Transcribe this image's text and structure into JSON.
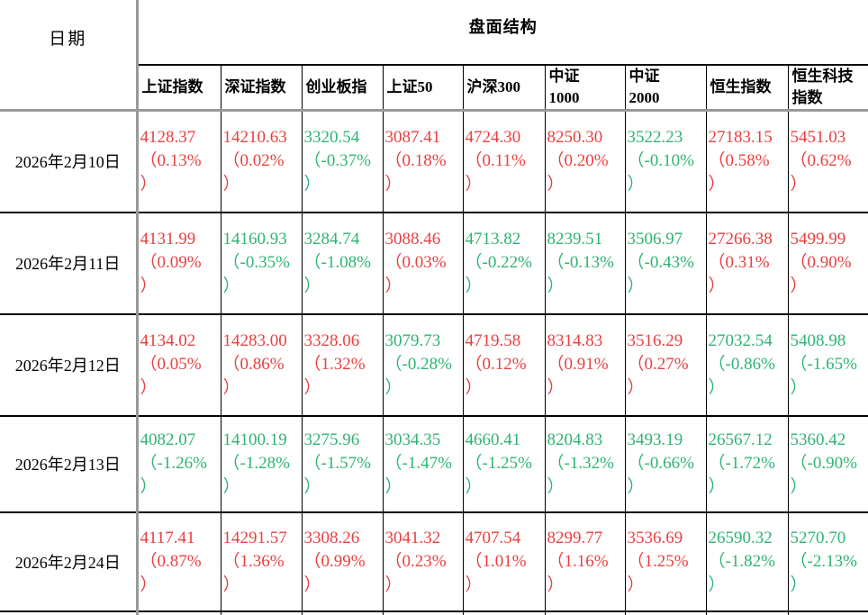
{
  "table": {
    "date_header": "日期",
    "group_header": "盘面结构",
    "paren_open": "（",
    "paren_close": "）",
    "columns": [
      "上证指数",
      "深证指数",
      "创业板指",
      "上证50",
      "沪深300",
      "中证\n1000",
      "中证\n2000",
      "恒生指数",
      "恒生科技\n指数"
    ],
    "rows": [
      {
        "date": "2026年2月10日",
        "cells": [
          {
            "value": "4128.37",
            "pct": "0.13%"
          },
          {
            "value": "14210.63",
            "pct": "0.02%"
          },
          {
            "value": "3320.54",
            "pct": "-0.37%"
          },
          {
            "value": "3087.41",
            "pct": "0.18%"
          },
          {
            "value": "4724.30",
            "pct": "0.11%"
          },
          {
            "value": "8250.30",
            "pct": "0.20%"
          },
          {
            "value": "3522.23",
            "pct": "-0.10%"
          },
          {
            "value": "27183.15",
            "pct": "0.58%"
          },
          {
            "value": "5451.03",
            "pct": "0.62%"
          }
        ]
      },
      {
        "date": "2026年2月11日",
        "cells": [
          {
            "value": "4131.99",
            "pct": "0.09%"
          },
          {
            "value": "14160.93",
            "pct": "-0.35%"
          },
          {
            "value": "3284.74",
            "pct": "-1.08%"
          },
          {
            "value": "3088.46",
            "pct": "0.03%"
          },
          {
            "value": "4713.82",
            "pct": "-0.22%"
          },
          {
            "value": "8239.51",
            "pct": "-0.13%"
          },
          {
            "value": "3506.97",
            "pct": "-0.43%"
          },
          {
            "value": "27266.38",
            "pct": "0.31%"
          },
          {
            "value": "5499.99",
            "pct": "0.90%"
          }
        ]
      },
      {
        "date": "2026年2月12日",
        "cells": [
          {
            "value": "4134.02",
            "pct": "0.05%"
          },
          {
            "value": "14283.00",
            "pct": "0.86%"
          },
          {
            "value": "3328.06",
            "pct": "1.32%"
          },
          {
            "value": "3079.73",
            "pct": "-0.28%"
          },
          {
            "value": "4719.58",
            "pct": "0.12%"
          },
          {
            "value": "8314.83",
            "pct": "0.91%"
          },
          {
            "value": "3516.29",
            "pct": "0.27%"
          },
          {
            "value": "27032.54",
            "pct": "-0.86%"
          },
          {
            "value": "5408.98",
            "pct": "-1.65%"
          }
        ]
      },
      {
        "date": "2026年2月13日",
        "cells": [
          {
            "value": "4082.07",
            "pct": "-1.26%"
          },
          {
            "value": "14100.19",
            "pct": "-1.28%"
          },
          {
            "value": "3275.96",
            "pct": "-1.57%"
          },
          {
            "value": "3034.35",
            "pct": "-1.47%"
          },
          {
            "value": "4660.41",
            "pct": "-1.25%"
          },
          {
            "value": "8204.83",
            "pct": "-1.32%"
          },
          {
            "value": "3493.19",
            "pct": "-0.66%"
          },
          {
            "value": "26567.12",
            "pct": "-1.72%"
          },
          {
            "value": "5360.42",
            "pct": "-0.90%"
          }
        ]
      },
      {
        "date": "2026年2月24日",
        "cells": [
          {
            "value": "4117.41",
            "pct": "0.87%"
          },
          {
            "value": "14291.57",
            "pct": "1.36%"
          },
          {
            "value": "3308.26",
            "pct": "0.99%"
          },
          {
            "value": "3041.32",
            "pct": "0.23%"
          },
          {
            "value": "4707.54",
            "pct": "1.01%"
          },
          {
            "value": "8299.77",
            "pct": "1.16%"
          },
          {
            "value": "3536.69",
            "pct": "1.25%"
          },
          {
            "value": "26590.32",
            "pct": "-1.82%"
          },
          {
            "value": "5270.70",
            "pct": "-2.13%"
          }
        ]
      }
    ]
  },
  "colors": {
    "up_red": "#e84040",
    "down_green": "#2eb473",
    "grid_black": "#000000",
    "grid_gray": "#999999"
  }
}
